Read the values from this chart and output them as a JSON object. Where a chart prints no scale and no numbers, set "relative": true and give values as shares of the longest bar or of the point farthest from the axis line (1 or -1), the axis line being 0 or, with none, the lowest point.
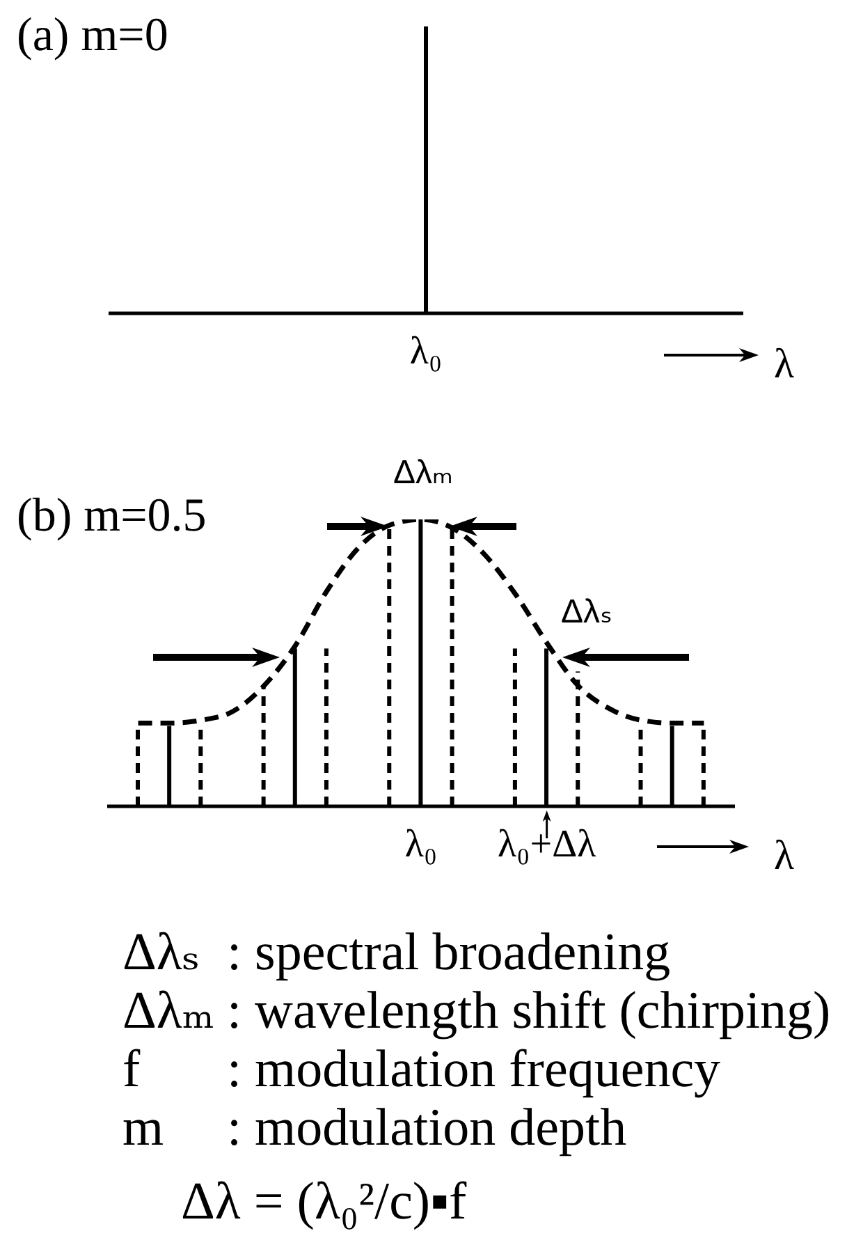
{
  "chart_data": [
    {
      "type": "bar",
      "title": "(a) m=0",
      "xlabel": "λ",
      "relative": true,
      "categories": [
        "λ₀"
      ],
      "values": [
        1
      ],
      "color": "#000000"
    },
    {
      "type": "bar",
      "title": "(b) m=0.5",
      "xlabel": "λ",
      "relative": true,
      "categories": [
        null,
        null,
        null,
        null,
        null,
        null,
        null,
        null,
        null,
        "λ₀",
        null,
        null,
        null,
        "λ₀+Δλ",
        null,
        null,
        null,
        null,
        null
      ],
      "series": [
        {
          "type": "bar",
          "color": "#000000",
          "line_style": "solid",
          "values": [
            null,
            0.28,
            null,
            null,
            null,
            0.55,
            null,
            null,
            null,
            1,
            null,
            null,
            null,
            0.55,
            null,
            null,
            null,
            0.28,
            null
          ]
        },
        {
          "type": "bar",
          "color": "#000000",
          "line_style": "dashed",
          "values": [
            0.28,
            null,
            0.28,
            null,
            0.42,
            null,
            0.55,
            null,
            0.97,
            null,
            0.97,
            null,
            0.55,
            null,
            0.47,
            null,
            0.28,
            null,
            0.28
          ]
        },
        {
          "type": "line",
          "color": "#000000",
          "line_style": "dashed",
          "values": [
            0.29,
            0.29,
            0.3,
            0.33,
            0.42,
            0.56,
            0.75,
            0.9,
            0.98,
            1,
            0.97,
            0.88,
            0.74,
            0.57,
            0.42,
            0.34,
            0.3,
            0.29,
            0.29
          ]
        }
      ],
      "annotations": [
        "Δλₘ",
        "Δλₛ"
      ]
    },
    {
      "type": "other",
      "annotations": [
        "Δλₛ : spectral broadening",
        "Δλₘ : wavelength shift (chirping)",
        "f : modulation frequency",
        "m : modulation depth",
        "Δλ = (λ₀²/c)▪f"
      ]
    }
  ]
}
